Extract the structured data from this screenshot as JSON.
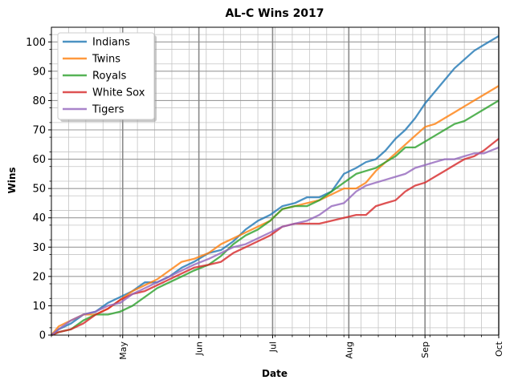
{
  "chart_data": {
    "type": "line",
    "title": "AL-C Wins 2017",
    "xlabel": "Date",
    "ylabel": "Wins",
    "x_date_range": [
      "2017-04-02",
      "2017-10-01"
    ],
    "ylim": [
      0,
      105
    ],
    "yticks": [
      0,
      10,
      20,
      30,
      40,
      50,
      60,
      70,
      80,
      90,
      100
    ],
    "xticks": [
      {
        "date": "2017-05-01",
        "label": "May"
      },
      {
        "date": "2017-06-01",
        "label": "Jun"
      },
      {
        "date": "2017-07-01",
        "label": "Jul"
      },
      {
        "date": "2017-08-01",
        "label": "Aug"
      },
      {
        "date": "2017-09-01",
        "label": "Sep"
      },
      {
        "date": "2017-10-01",
        "label": "Oct"
      }
    ],
    "grid": true,
    "legend_position": "top-left",
    "series": [
      {
        "name": "Indians",
        "color": "#1f77b4",
        "points": [
          [
            "2017-04-02",
            0
          ],
          [
            "2017-04-05",
            2
          ],
          [
            "2017-04-10",
            4
          ],
          [
            "2017-04-15",
            7
          ],
          [
            "2017-04-20",
            8
          ],
          [
            "2017-04-25",
            11
          ],
          [
            "2017-04-30",
            13
          ],
          [
            "2017-05-05",
            15
          ],
          [
            "2017-05-10",
            18
          ],
          [
            "2017-05-15",
            18
          ],
          [
            "2017-05-20",
            20
          ],
          [
            "2017-05-25",
            23
          ],
          [
            "2017-05-30",
            25
          ],
          [
            "2017-06-05",
            28
          ],
          [
            "2017-06-10",
            29
          ],
          [
            "2017-06-15",
            32
          ],
          [
            "2017-06-20",
            36
          ],
          [
            "2017-06-25",
            39
          ],
          [
            "2017-06-30",
            41
          ],
          [
            "2017-07-05",
            44
          ],
          [
            "2017-07-10",
            45
          ],
          [
            "2017-07-15",
            47
          ],
          [
            "2017-07-20",
            47
          ],
          [
            "2017-07-25",
            49
          ],
          [
            "2017-07-30",
            55
          ],
          [
            "2017-08-04",
            57
          ],
          [
            "2017-08-08",
            59
          ],
          [
            "2017-08-12",
            60
          ],
          [
            "2017-08-16",
            63
          ],
          [
            "2017-08-20",
            67
          ],
          [
            "2017-08-24",
            70
          ],
          [
            "2017-08-28",
            74
          ],
          [
            "2017-09-01",
            79
          ],
          [
            "2017-09-05",
            83
          ],
          [
            "2017-09-09",
            87
          ],
          [
            "2017-09-13",
            91
          ],
          [
            "2017-09-17",
            94
          ],
          [
            "2017-09-21",
            97
          ],
          [
            "2017-09-25",
            99
          ],
          [
            "2017-10-01",
            102
          ]
        ]
      },
      {
        "name": "Twins",
        "color": "#ff7f0e",
        "points": [
          [
            "2017-04-02",
            0
          ],
          [
            "2017-04-05",
            3
          ],
          [
            "2017-04-10",
            5
          ],
          [
            "2017-04-15",
            7
          ],
          [
            "2017-04-20",
            7
          ],
          [
            "2017-04-25",
            9
          ],
          [
            "2017-04-30",
            12
          ],
          [
            "2017-05-05",
            15
          ],
          [
            "2017-05-10",
            17
          ],
          [
            "2017-05-15",
            19
          ],
          [
            "2017-05-20",
            22
          ],
          [
            "2017-05-25",
            25
          ],
          [
            "2017-05-30",
            26
          ],
          [
            "2017-06-05",
            28
          ],
          [
            "2017-06-10",
            31
          ],
          [
            "2017-06-15",
            33
          ],
          [
            "2017-06-20",
            35
          ],
          [
            "2017-06-25",
            37
          ],
          [
            "2017-06-30",
            39
          ],
          [
            "2017-07-05",
            43
          ],
          [
            "2017-07-10",
            44
          ],
          [
            "2017-07-15",
            45
          ],
          [
            "2017-07-20",
            46
          ],
          [
            "2017-07-25",
            48
          ],
          [
            "2017-07-30",
            50
          ],
          [
            "2017-08-04",
            50
          ],
          [
            "2017-08-08",
            52
          ],
          [
            "2017-08-12",
            56
          ],
          [
            "2017-08-16",
            59
          ],
          [
            "2017-08-20",
            62
          ],
          [
            "2017-08-24",
            65
          ],
          [
            "2017-08-28",
            68
          ],
          [
            "2017-09-01",
            71
          ],
          [
            "2017-09-05",
            72
          ],
          [
            "2017-09-09",
            74
          ],
          [
            "2017-09-13",
            76
          ],
          [
            "2017-09-17",
            78
          ],
          [
            "2017-09-21",
            80
          ],
          [
            "2017-09-25",
            82
          ],
          [
            "2017-10-01",
            85
          ]
        ]
      },
      {
        "name": "Royals",
        "color": "#2ca02c",
        "points": [
          [
            "2017-04-02",
            0
          ],
          [
            "2017-04-05",
            1
          ],
          [
            "2017-04-10",
            2
          ],
          [
            "2017-04-15",
            5
          ],
          [
            "2017-04-20",
            7
          ],
          [
            "2017-04-25",
            7
          ],
          [
            "2017-04-30",
            8
          ],
          [
            "2017-05-05",
            10
          ],
          [
            "2017-05-10",
            13
          ],
          [
            "2017-05-15",
            16
          ],
          [
            "2017-05-20",
            18
          ],
          [
            "2017-05-25",
            20
          ],
          [
            "2017-05-30",
            22
          ],
          [
            "2017-06-05",
            24
          ],
          [
            "2017-06-10",
            27
          ],
          [
            "2017-06-15",
            31
          ],
          [
            "2017-06-20",
            34
          ],
          [
            "2017-06-25",
            36
          ],
          [
            "2017-06-30",
            39
          ],
          [
            "2017-07-05",
            43
          ],
          [
            "2017-07-10",
            44
          ],
          [
            "2017-07-15",
            44
          ],
          [
            "2017-07-20",
            46
          ],
          [
            "2017-07-25",
            49
          ],
          [
            "2017-07-30",
            52
          ],
          [
            "2017-08-04",
            55
          ],
          [
            "2017-08-08",
            56
          ],
          [
            "2017-08-12",
            57
          ],
          [
            "2017-08-16",
            59
          ],
          [
            "2017-08-20",
            61
          ],
          [
            "2017-08-24",
            64
          ],
          [
            "2017-08-28",
            64
          ],
          [
            "2017-09-01",
            66
          ],
          [
            "2017-09-05",
            68
          ],
          [
            "2017-09-09",
            70
          ],
          [
            "2017-09-13",
            72
          ],
          [
            "2017-09-17",
            73
          ],
          [
            "2017-09-21",
            75
          ],
          [
            "2017-09-25",
            77
          ],
          [
            "2017-10-01",
            80
          ]
        ]
      },
      {
        "name": "White Sox",
        "color": "#d62728",
        "points": [
          [
            "2017-04-02",
            0
          ],
          [
            "2017-04-05",
            1
          ],
          [
            "2017-04-10",
            2
          ],
          [
            "2017-04-15",
            4
          ],
          [
            "2017-04-20",
            7
          ],
          [
            "2017-04-25",
            9
          ],
          [
            "2017-04-30",
            12
          ],
          [
            "2017-05-05",
            14
          ],
          [
            "2017-05-10",
            15
          ],
          [
            "2017-05-15",
            17
          ],
          [
            "2017-05-20",
            19
          ],
          [
            "2017-05-25",
            21
          ],
          [
            "2017-05-30",
            23
          ],
          [
            "2017-06-05",
            24
          ],
          [
            "2017-06-10",
            25
          ],
          [
            "2017-06-15",
            28
          ],
          [
            "2017-06-20",
            30
          ],
          [
            "2017-06-25",
            32
          ],
          [
            "2017-06-30",
            34
          ],
          [
            "2017-07-05",
            37
          ],
          [
            "2017-07-10",
            38
          ],
          [
            "2017-07-15",
            38
          ],
          [
            "2017-07-20",
            38
          ],
          [
            "2017-07-25",
            39
          ],
          [
            "2017-07-30",
            40
          ],
          [
            "2017-08-04",
            41
          ],
          [
            "2017-08-08",
            41
          ],
          [
            "2017-08-12",
            44
          ],
          [
            "2017-08-16",
            45
          ],
          [
            "2017-08-20",
            46
          ],
          [
            "2017-08-24",
            49
          ],
          [
            "2017-08-28",
            51
          ],
          [
            "2017-09-01",
            52
          ],
          [
            "2017-09-05",
            54
          ],
          [
            "2017-09-09",
            56
          ],
          [
            "2017-09-13",
            58
          ],
          [
            "2017-09-17",
            60
          ],
          [
            "2017-09-21",
            61
          ],
          [
            "2017-09-25",
            63
          ],
          [
            "2017-10-01",
            67
          ]
        ]
      },
      {
        "name": "Tigers",
        "color": "#9467bd",
        "points": [
          [
            "2017-04-02",
            0
          ],
          [
            "2017-04-05",
            2
          ],
          [
            "2017-04-10",
            5
          ],
          [
            "2017-04-15",
            7
          ],
          [
            "2017-04-20",
            8
          ],
          [
            "2017-04-25",
            10
          ],
          [
            "2017-04-30",
            11
          ],
          [
            "2017-05-05",
            14
          ],
          [
            "2017-05-10",
            16
          ],
          [
            "2017-05-15",
            18
          ],
          [
            "2017-05-20",
            20
          ],
          [
            "2017-05-25",
            22
          ],
          [
            "2017-05-30",
            24
          ],
          [
            "2017-06-05",
            26
          ],
          [
            "2017-06-10",
            28
          ],
          [
            "2017-06-15",
            30
          ],
          [
            "2017-06-20",
            31
          ],
          [
            "2017-06-25",
            33
          ],
          [
            "2017-06-30",
            35
          ],
          [
            "2017-07-05",
            37
          ],
          [
            "2017-07-10",
            38
          ],
          [
            "2017-07-15",
            39
          ],
          [
            "2017-07-20",
            41
          ],
          [
            "2017-07-25",
            44
          ],
          [
            "2017-07-30",
            45
          ],
          [
            "2017-08-04",
            49
          ],
          [
            "2017-08-08",
            51
          ],
          [
            "2017-08-12",
            52
          ],
          [
            "2017-08-16",
            53
          ],
          [
            "2017-08-20",
            54
          ],
          [
            "2017-08-24",
            55
          ],
          [
            "2017-08-28",
            57
          ],
          [
            "2017-09-01",
            58
          ],
          [
            "2017-09-05",
            59
          ],
          [
            "2017-09-09",
            60
          ],
          [
            "2017-09-13",
            60
          ],
          [
            "2017-09-17",
            61
          ],
          [
            "2017-09-21",
            62
          ],
          [
            "2017-09-25",
            62
          ],
          [
            "2017-10-01",
            64
          ]
        ]
      }
    ]
  }
}
